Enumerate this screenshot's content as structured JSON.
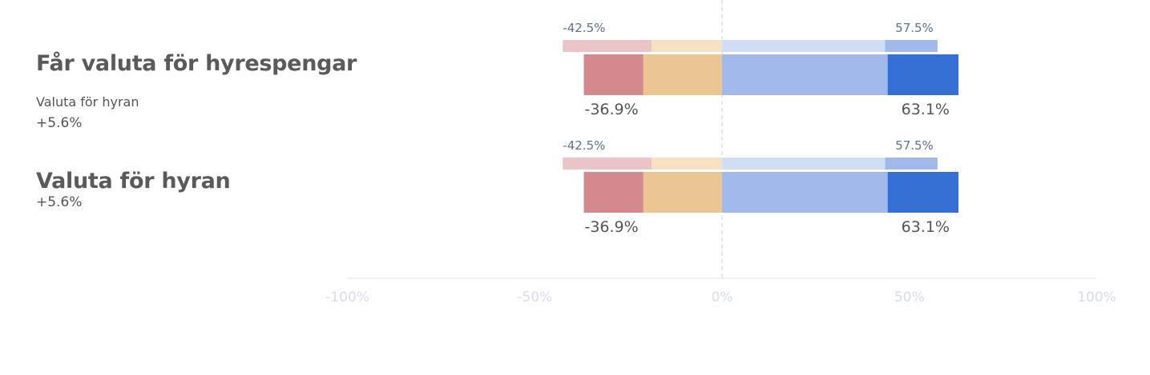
{
  "chart_data": {
    "type": "bar",
    "orientation": "horizontal-diverging",
    "xlim": [
      -100,
      100
    ],
    "x_ticks": [
      "-100%",
      "-50%",
      "0%",
      "50%",
      "100%"
    ],
    "x_tick_values": [
      -100,
      -50,
      0,
      50,
      100
    ],
    "colors": {
      "strong_negative": "#d4898f",
      "negative": "#ebc692",
      "positive": "#a1b9ea",
      "strong_positive": "#356fd3",
      "ref_strong_negative": "#eac4c6",
      "ref_negative": "#f6e1c4",
      "ref_positive": "#d0ddf7",
      "ref_strong_positive": "#a1b9ea",
      "axis": "#e6e6e6",
      "tick_label": "#d6deea",
      "ref_label": "#5b7393",
      "value_label": "#555555"
    },
    "rows": [
      {
        "title": "Får valuta för hyrespengar",
        "subtitle": "Valuta för hyran",
        "delta": "+5.6%",
        "reference": {
          "segments": [
            -23.7,
            -18.8,
            43.5,
            14.0
          ],
          "neg_label": "-42.5%",
          "pos_label": "57.5%"
        },
        "current": {
          "segments": [
            -15.9,
            -21.0,
            44.2,
            18.9
          ],
          "neg_label": "-36.9%",
          "pos_label": "63.1%"
        }
      },
      {
        "title": "Valuta för hyran",
        "subtitle": "",
        "delta": "+5.6%",
        "reference": {
          "segments": [
            -23.7,
            -18.8,
            43.5,
            14.0
          ],
          "neg_label": "-42.5%",
          "pos_label": "57.5%"
        },
        "current": {
          "segments": [
            -15.9,
            -21.0,
            44.2,
            18.9
          ],
          "neg_label": "-36.9%",
          "pos_label": "63.1%"
        }
      }
    ]
  }
}
